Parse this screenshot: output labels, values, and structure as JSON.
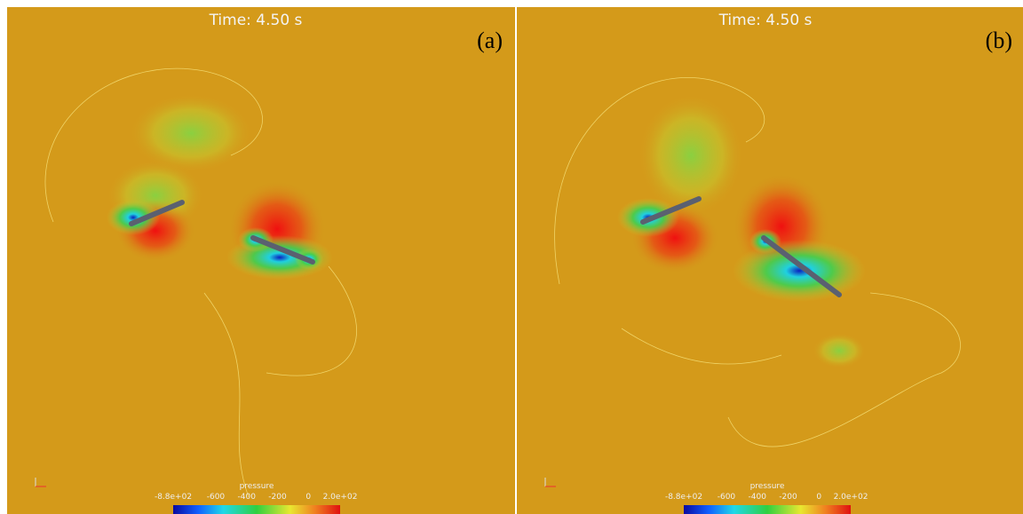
{
  "panels": [
    {
      "time_label": "Time: 4.50 s",
      "panel_label": "(a)",
      "colorbar": {
        "title": "pressure",
        "ticks": [
          "-8.8e+02",
          "-600",
          "-400",
          "-200",
          "0",
          "2.0e+02"
        ]
      }
    },
    {
      "time_label": "Time: 4.50 s",
      "panel_label": "(b)",
      "colorbar": {
        "title": "pressure",
        "ticks": [
          "-8.8e+02",
          "-600",
          "-400",
          "-200",
          "0",
          "2.0e+02"
        ]
      }
    }
  ]
}
